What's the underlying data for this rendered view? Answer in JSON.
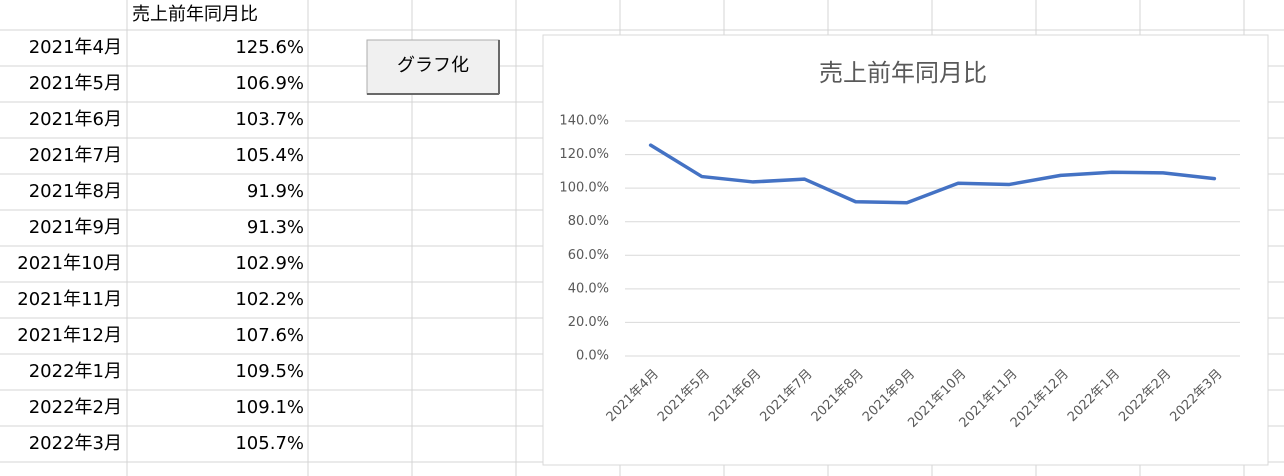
{
  "sheet": {
    "header": "売上前年同月比",
    "rows": [
      [
        "2021年4月",
        "125.6%"
      ],
      [
        "2021年5月",
        "106.9%"
      ],
      [
        "2021年6月",
        "103.7%"
      ],
      [
        "2021年7月",
        "105.4%"
      ],
      [
        "2021年8月",
        "91.9%"
      ],
      [
        "2021年9月",
        "91.3%"
      ],
      [
        "2021年10月",
        "102.9%"
      ],
      [
        "2021年11月",
        "102.2%"
      ],
      [
        "2021年12月",
        "107.6%"
      ],
      [
        "2022年1月",
        "109.5%"
      ],
      [
        "2022年2月",
        "109.1%"
      ],
      [
        "2022年3月",
        "105.7%"
      ]
    ]
  },
  "button": {
    "label": "グラフ化"
  },
  "chart_data": {
    "type": "line",
    "title": "売上前年同月比",
    "categories": [
      "2021年4月",
      "2021年5月",
      "2021年6月",
      "2021年7月",
      "2021年8月",
      "2021年9月",
      "2021年10月",
      "2021年11月",
      "2021年12月",
      "2022年1月",
      "2022年2月",
      "2022年3月"
    ],
    "values": [
      125.6,
      106.9,
      103.7,
      105.4,
      91.9,
      91.3,
      102.9,
      102.2,
      107.6,
      109.5,
      109.1,
      105.7
    ],
    "color": "#4472c4",
    "ylim": [
      0,
      140
    ],
    "yticks": [
      {
        "value": 0,
        "label": "0.0%"
      },
      {
        "value": 20,
        "label": "20.0%"
      },
      {
        "value": 40,
        "label": "40.0%"
      },
      {
        "value": 60,
        "label": "60.0%"
      },
      {
        "value": 80,
        "label": "80.0%"
      },
      {
        "value": 100,
        "label": "100.0%"
      },
      {
        "value": 120,
        "label": "120.0%"
      },
      {
        "value": 140,
        "label": "140.0%"
      }
    ],
    "grid": true
  }
}
